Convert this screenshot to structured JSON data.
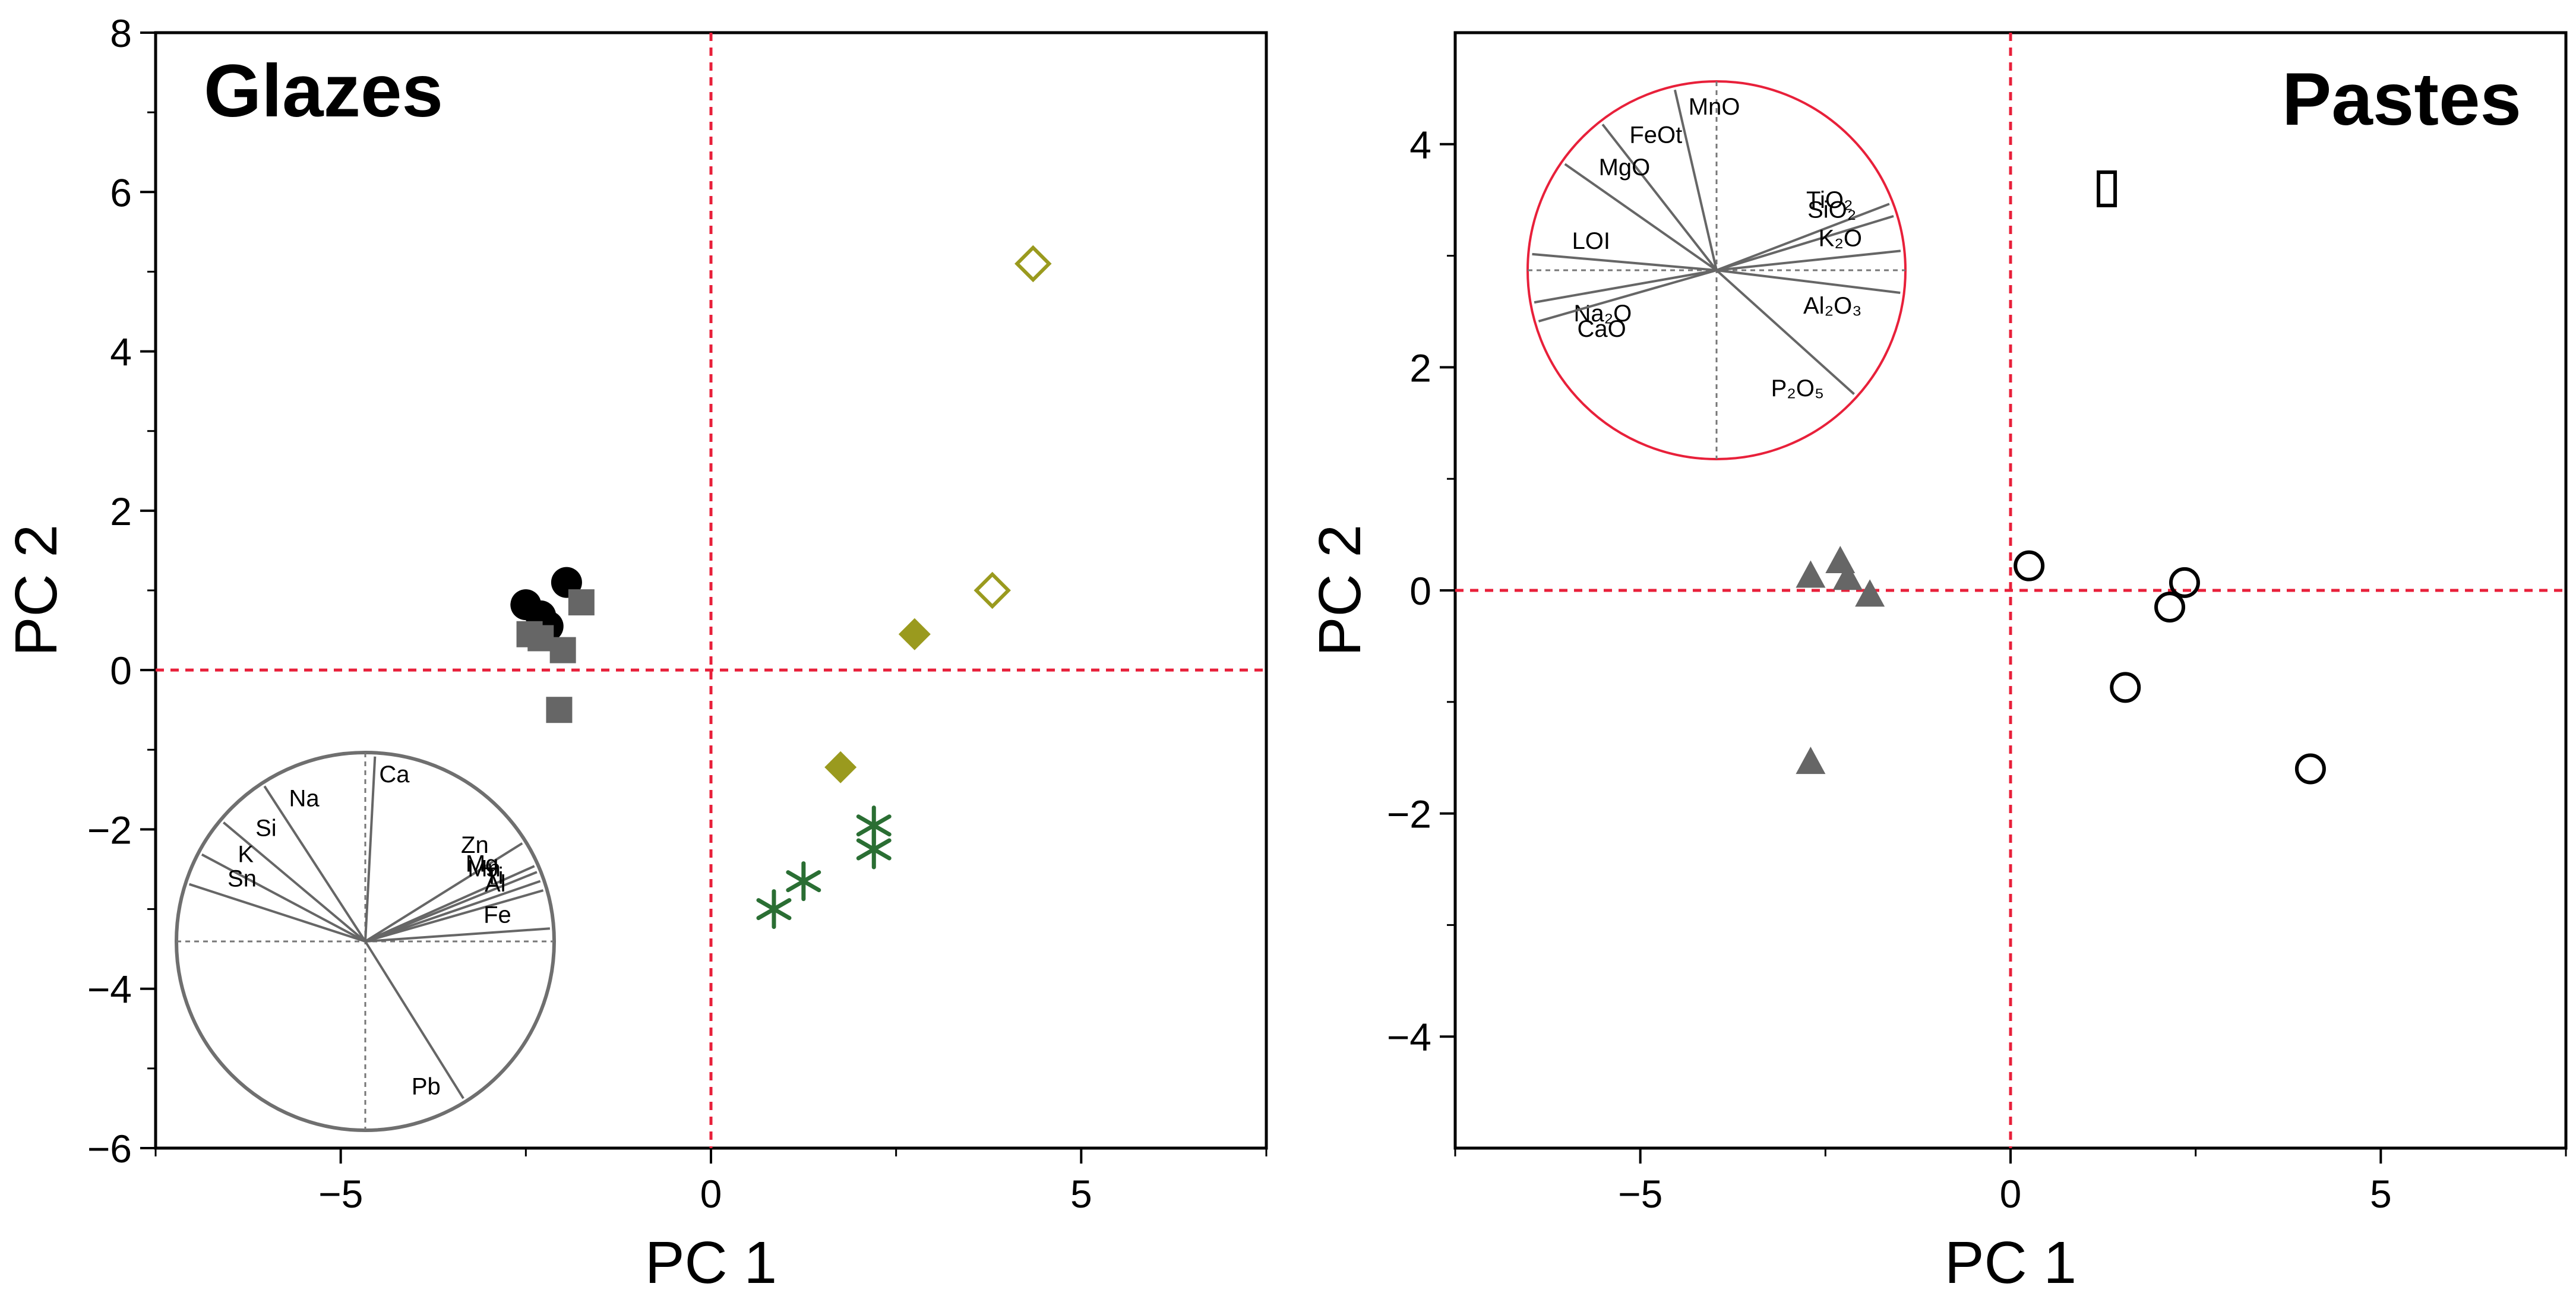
{
  "chart_data": [
    {
      "type": "scatter",
      "title": "Glazes",
      "xlabel": "PC 1",
      "ylabel": "PC 2",
      "xlim": [
        -7.5,
        7.5
      ],
      "ylim": [
        -6,
        8
      ],
      "xticks": [
        -5,
        0,
        5
      ],
      "yticks": [
        -6,
        -4,
        -2,
        0,
        2,
        4,
        6,
        8
      ],
      "reference_lines": {
        "x": 0,
        "y": 0,
        "color": "#e8203a"
      },
      "series": [
        {
          "name": "black-circles",
          "marker": "circle-filled",
          "color": "#000000",
          "points": [
            [
              -2.5,
              0.82
            ],
            [
              -2.3,
              0.68
            ],
            [
              -2.2,
              0.55
            ],
            [
              -1.95,
              1.1
            ]
          ]
        },
        {
          "name": "gray-squares",
          "marker": "square-filled",
          "color": "#666666",
          "points": [
            [
              -2.45,
              0.45
            ],
            [
              -2.3,
              0.4
            ],
            [
              -1.75,
              0.85
            ],
            [
              -2.0,
              0.25
            ],
            [
              -2.05,
              -0.5
            ]
          ]
        },
        {
          "name": "olive-filled-diamonds",
          "marker": "diamond-filled",
          "color": "#9a9a1e",
          "points": [
            [
              2.75,
              0.45
            ],
            [
              1.75,
              -1.22
            ]
          ]
        },
        {
          "name": "olive-open-diamonds",
          "marker": "diamond-open",
          "color": "#9a9a1e",
          "points": [
            [
              4.35,
              5.1
            ],
            [
              3.8,
              1.0
            ]
          ]
        },
        {
          "name": "green-asterisks",
          "marker": "asterisk",
          "color": "#2a6e33",
          "points": [
            [
              0.85,
              -3.0
            ],
            [
              1.25,
              -2.65
            ],
            [
              2.2,
              -1.95
            ],
            [
              2.2,
              -2.25
            ]
          ]
        }
      ],
      "inset": {
        "circle_color": "#6f6f6f",
        "loadings": [
          {
            "label": "Ca",
            "angle": 87
          },
          {
            "label": "Na",
            "angle": 123
          },
          {
            "label": "Si",
            "angle": 140
          },
          {
            "label": "K",
            "angle": 152
          },
          {
            "label": "Sn",
            "angle": 162
          },
          {
            "label": "Zn",
            "angle": 32
          },
          {
            "label": "Mg",
            "angle": 24
          },
          {
            "label": "Mn",
            "angle": 22
          },
          {
            "label": "Ti",
            "angle": 19
          },
          {
            "label": "Al",
            "angle": 16
          },
          {
            "label": "Fe",
            "angle": 4
          },
          {
            "label": "Pb",
            "angle": -58
          }
        ]
      }
    },
    {
      "type": "scatter",
      "title": "Pastes",
      "xlabel": "PC 1",
      "ylabel": "PC 2",
      "xlim": [
        -7.5,
        7.5
      ],
      "ylim": [
        -5,
        5
      ],
      "xticks": [
        -5,
        0,
        5
      ],
      "yticks": [
        -4,
        -2,
        0,
        2,
        4
      ],
      "reference_lines": {
        "x": 0,
        "y": 0,
        "color": "#e8203a"
      },
      "series": [
        {
          "name": "gray-triangles",
          "marker": "triangle-filled",
          "color": "#666666",
          "points": [
            [
              -2.7,
              0.12
            ],
            [
              -2.3,
              0.25
            ],
            [
              -2.2,
              0.1
            ],
            [
              -1.9,
              -0.05
            ],
            [
              -2.7,
              -1.55
            ]
          ]
        },
        {
          "name": "open-circles",
          "marker": "circle-open",
          "color": "#000000",
          "points": [
            [
              0.25,
              0.22
            ],
            [
              2.35,
              0.07
            ],
            [
              2.15,
              -0.15
            ],
            [
              1.55,
              -0.87
            ],
            [
              4.05,
              -1.6
            ]
          ]
        },
        {
          "name": "open-rectangle",
          "marker": "rect-open",
          "color": "#000000",
          "points": [
            [
              1.3,
              3.6
            ]
          ]
        }
      ],
      "inset": {
        "circle_color": "#e8203a",
        "loadings": [
          {
            "label": "MnO",
            "angle": 103
          },
          {
            "label": "FeOt",
            "angle": 128
          },
          {
            "label": "MgO",
            "angle": 145
          },
          {
            "label": "LOI",
            "angle": 175
          },
          {
            "label": "Na₂O",
            "angle": 190
          },
          {
            "label": "CaO",
            "angle": 196
          },
          {
            "label": "TiO₂",
            "angle": 21
          },
          {
            "label": "SiO₂",
            "angle": 17
          },
          {
            "label": "K₂O",
            "angle": 6
          },
          {
            "label": "Al₂O₃",
            "angle": -7
          },
          {
            "label": "P₂O₅",
            "angle": -42
          }
        ]
      }
    }
  ]
}
